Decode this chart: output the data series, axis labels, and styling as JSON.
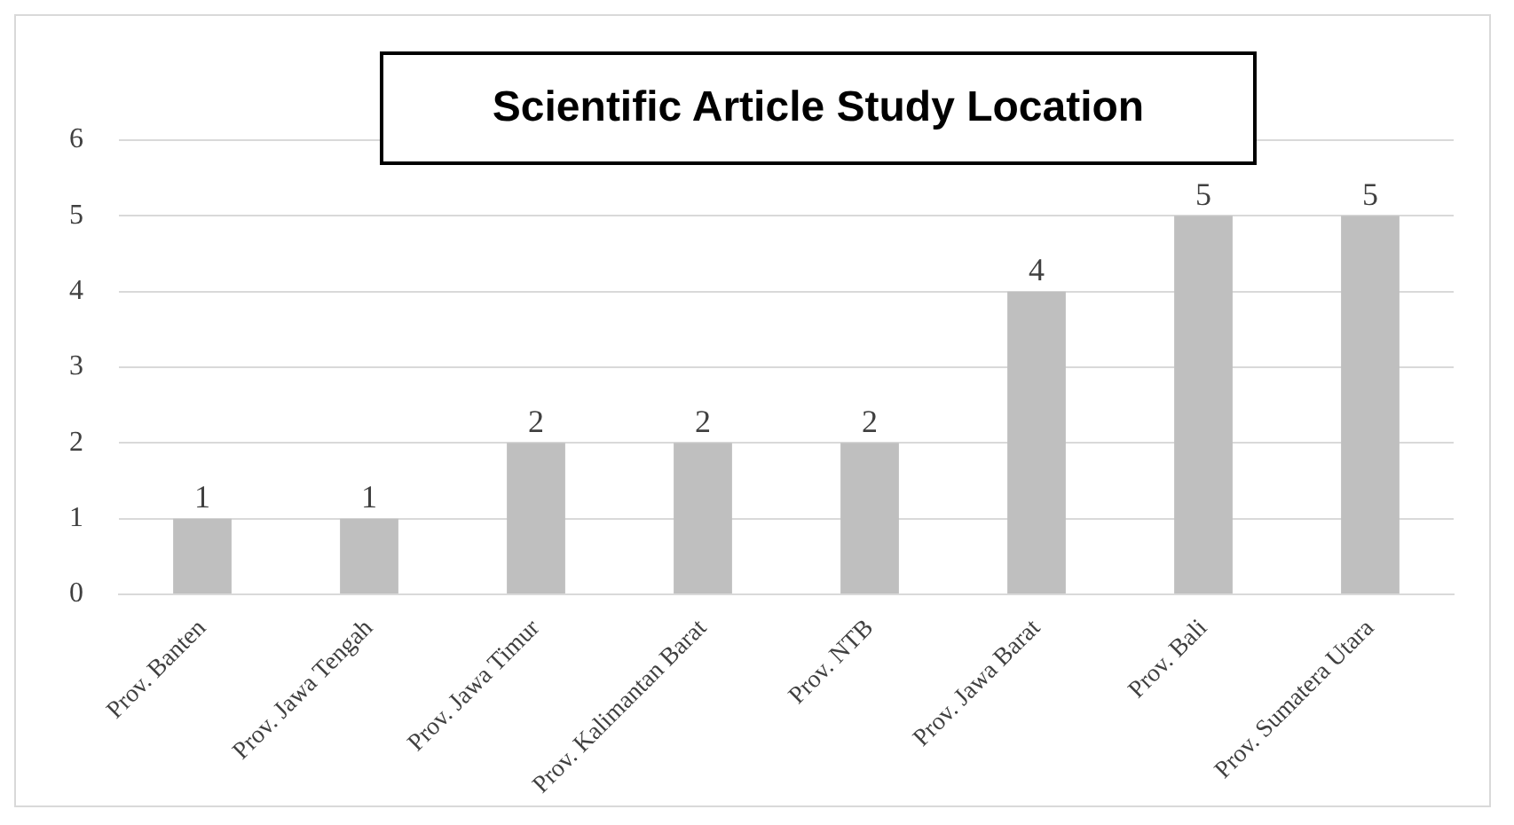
{
  "chart_data": {
    "type": "bar",
    "title": "Scientific Article Study Location",
    "categories": [
      "Prov. Banten",
      "Prov. Jawa Tengah",
      "Prov. Jawa Timur",
      "Prov. Kalimantan Barat",
      "Prov. NTB",
      "Prov. Jawa Barat",
      "Prov. Bali",
      "Prov. Sumatera Utara"
    ],
    "values": [
      1,
      1,
      2,
      2,
      2,
      4,
      5,
      5
    ],
    "color": "#bfbfbf",
    "ylim": [
      0,
      6
    ],
    "yticks": [
      0,
      1,
      2,
      3,
      4,
      5,
      6
    ],
    "grid": "y",
    "data_labels": true,
    "legend": false
  }
}
